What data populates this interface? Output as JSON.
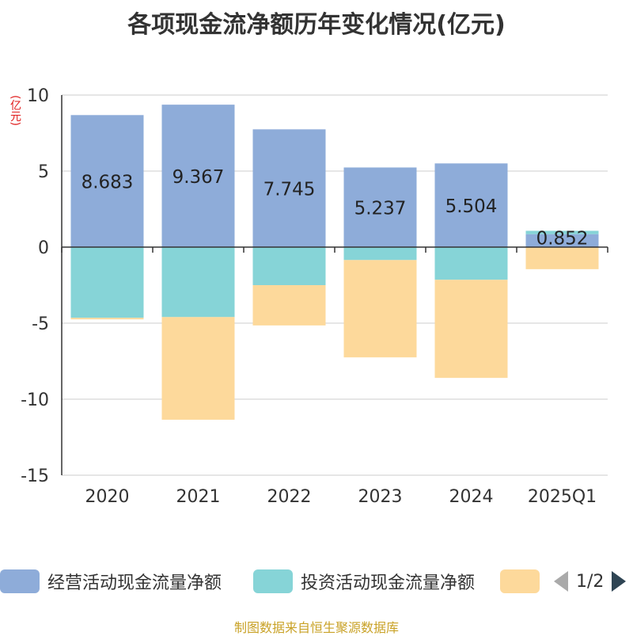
{
  "chart_data": {
    "type": "bar",
    "stacked": true,
    "title": "各项现金流净额历年变化情况(亿元)",
    "unit": "(亿元)",
    "categories": [
      "2020",
      "2021",
      "2022",
      "2023",
      "2024",
      "2025Q1"
    ],
    "ylim": [
      -15,
      10
    ],
    "yticks": [
      10,
      5,
      0,
      -5,
      -10,
      -15
    ],
    "grid": true,
    "legend_position": "bottom",
    "series": [
      {
        "name": "经营活动现金流量净额",
        "color": "#8eacd9",
        "values": [
          8.683,
          9.367,
          7.745,
          5.237,
          5.504,
          0.852
        ],
        "labels": [
          "8.683",
          "9.367",
          "7.745",
          "5.237",
          "5.504",
          "0.852"
        ]
      },
      {
        "name": "投资活动现金流量净额",
        "color": "#86d4d7",
        "values": [
          -4.65,
          -4.6,
          -2.5,
          -0.85,
          -2.15,
          0.22
        ]
      },
      {
        "name": "",
        "color": "#fdd99b",
        "values": [
          -0.1,
          -6.75,
          -2.65,
          -6.4,
          -6.45,
          -1.45
        ]
      }
    ]
  },
  "legend": {
    "pager_text": "1/2"
  },
  "footer": {
    "source": "制图数据来自恒生聚源数据库"
  }
}
